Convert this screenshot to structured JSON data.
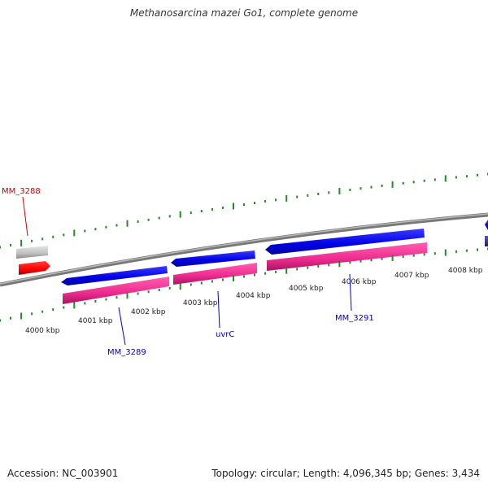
{
  "title": "Methanosarcina mazei Go1, complete genome",
  "footer": {
    "accession_label": "Accession:",
    "accession": "NC_003901",
    "topology_label": "Topology:",
    "topology": "circular",
    "length_label": "Length:",
    "length": "4,096,345 bp",
    "genes_label": "Genes:",
    "genes": "3,434"
  },
  "colors": {
    "backbone": "#888888",
    "gene_forward": "#0000ee",
    "gene_cds": "#ee2a8f",
    "gene_other": "#ff0000",
    "gene_grey": "#c0c0c0",
    "tick": "#228b22",
    "label_blue": "#0000cc",
    "label_red": "#cc0000"
  },
  "scale": {
    "unit": "kbp",
    "ticks": [
      {
        "kbp": 4000,
        "label": "4000 kbp"
      },
      {
        "kbp": 4001,
        "label": "4001 kbp"
      },
      {
        "kbp": 4002,
        "label": "4002 kbp"
      },
      {
        "kbp": 4003,
        "label": "4003 kbp"
      },
      {
        "kbp": 4004,
        "label": "4004 kbp"
      },
      {
        "kbp": 4005,
        "label": "4005 kbp"
      },
      {
        "kbp": 4006,
        "label": "4006 kbp"
      },
      {
        "kbp": 4007,
        "label": "4007 kbp"
      },
      {
        "kbp": 4008,
        "label": "4008 kbp"
      }
    ]
  },
  "genes": [
    {
      "name": "MM_3288",
      "type": "other",
      "strand": 1
    },
    {
      "name": "MM_3289",
      "type": "cds",
      "strand": -1
    },
    {
      "name": "uvrC",
      "type": "cds",
      "strand": -1
    },
    {
      "name": "MM_3291",
      "type": "cds",
      "strand": -1
    }
  ]
}
